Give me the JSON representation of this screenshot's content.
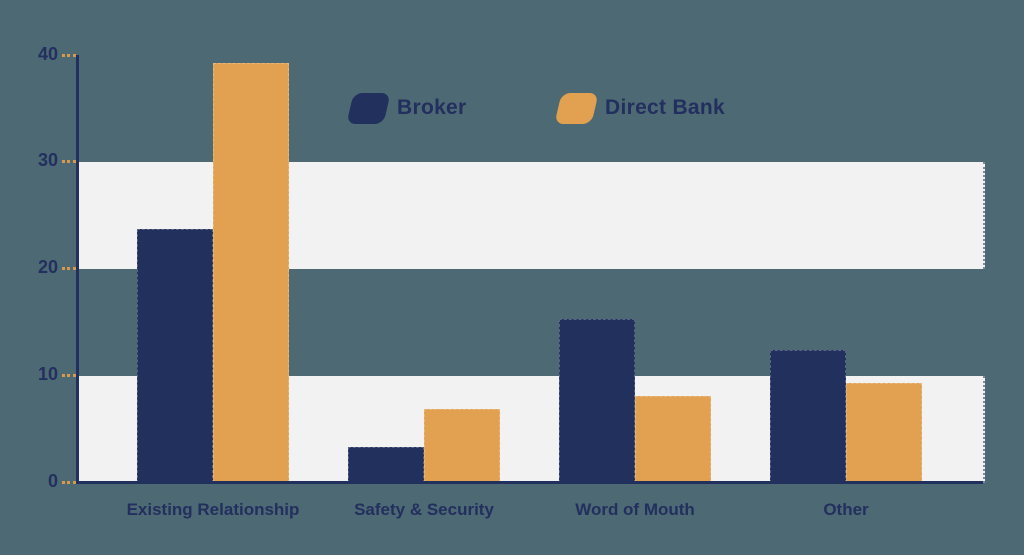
{
  "chart_data": {
    "type": "bar",
    "title": "",
    "xlabel": "",
    "ylabel": "",
    "categories": [
      "Existing Relationship",
      "Safety & Security",
      "Word of Mouth",
      "Other"
    ],
    "series": [
      {
        "name": "Broker",
        "color": "#22305e",
        "values": [
          23.8,
          3.4,
          15.3,
          12.4
        ]
      },
      {
        "name": "Direct Bank",
        "color": "#e2a150",
        "values": [
          39.3,
          6.9,
          8.1,
          9.4
        ]
      }
    ],
    "ylim": [
      0,
      40
    ],
    "yticks": [
      0,
      10,
      20,
      30,
      40
    ],
    "grid_bands": [
      [
        0,
        10
      ],
      [
        20,
        30
      ]
    ],
    "legend_position": "top-center",
    "background_color": "#4d6973",
    "band_color": "#f2f2f3",
    "axis_color": "#22305e",
    "tick_color": "#d69a4e",
    "label_color": "#232f5e"
  }
}
